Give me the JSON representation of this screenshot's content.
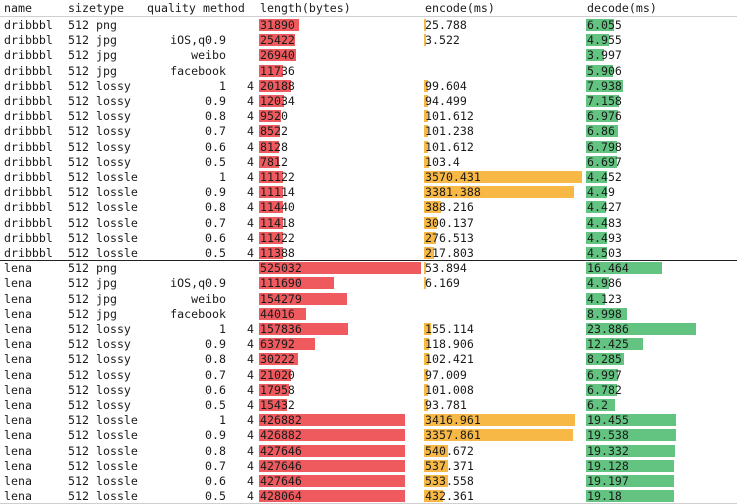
{
  "columns": {
    "name": "name",
    "size": "size",
    "type": "type",
    "quality": "quality",
    "method": "method",
    "length": "length(bytes)",
    "encode": "encode(ms)",
    "decode": "decode(ms)"
  },
  "bar_colors": {
    "length": "#ef5a5f",
    "encode": "#f7b846",
    "decode": "#63c381"
  },
  "bar_max": {
    "length": 525032,
    "encode": 3570.431,
    "decode": 23.886
  },
  "rows": [
    {
      "name": "dribbbl",
      "size": "512",
      "type": "png",
      "quality": "",
      "method": "",
      "length": "31890",
      "encode": "25.788",
      "decode": "6.055"
    },
    {
      "name": "dribbbl",
      "size": "512",
      "type": "jpg",
      "quality": "iOS,q0.9",
      "method": "",
      "length": "25422",
      "encode": "3.522",
      "decode": "4.955"
    },
    {
      "name": "dribbbl",
      "size": "512",
      "type": "jpg",
      "quality": "weibo",
      "method": "",
      "length": "26940",
      "encode": "",
      "decode": "3.997"
    },
    {
      "name": "dribbbl",
      "size": "512",
      "type": "jpg",
      "quality": "facebook",
      "method": "",
      "length": "11736",
      "encode": "",
      "decode": "5.906"
    },
    {
      "name": "dribbbl",
      "size": "512",
      "type": "lossy",
      "quality": "1",
      "method": "4",
      "length": "20188",
      "encode": "99.604",
      "decode": "7.938"
    },
    {
      "name": "dribbbl",
      "size": "512",
      "type": "lossy",
      "quality": "0.9",
      "method": "4",
      "length": "12034",
      "encode": "94.499",
      "decode": "7.158"
    },
    {
      "name": "dribbbl",
      "size": "512",
      "type": "lossy",
      "quality": "0.8",
      "method": "4",
      "length": "9520",
      "encode": "101.612",
      "decode": "6.976"
    },
    {
      "name": "dribbbl",
      "size": "512",
      "type": "lossy",
      "quality": "0.7",
      "method": "4",
      "length": "8522",
      "encode": "101.238",
      "decode": "6.86"
    },
    {
      "name": "dribbbl",
      "size": "512",
      "type": "lossy",
      "quality": "0.6",
      "method": "4",
      "length": "8128",
      "encode": "101.612",
      "decode": "6.798"
    },
    {
      "name": "dribbbl",
      "size": "512",
      "type": "lossy",
      "quality": "0.5",
      "method": "4",
      "length": "7812",
      "encode": "103.4",
      "decode": "6.697"
    },
    {
      "name": "dribbbl",
      "size": "512",
      "type": "lossle",
      "quality": "1",
      "method": "4",
      "length": "11122",
      "encode": "3570.431",
      "decode": "4.452"
    },
    {
      "name": "dribbbl",
      "size": "512",
      "type": "lossle",
      "quality": "0.9",
      "method": "4",
      "length": "11114",
      "encode": "3381.388",
      "decode": "4.49"
    },
    {
      "name": "dribbbl",
      "size": "512",
      "type": "lossle",
      "quality": "0.8",
      "method": "4",
      "length": "11440",
      "encode": "388.216",
      "decode": "4.427"
    },
    {
      "name": "dribbbl",
      "size": "512",
      "type": "lossle",
      "quality": "0.7",
      "method": "4",
      "length": "11418",
      "encode": "300.137",
      "decode": "4.483"
    },
    {
      "name": "dribbbl",
      "size": "512",
      "type": "lossle",
      "quality": "0.6",
      "method": "4",
      "length": "11422",
      "encode": "276.513",
      "decode": "4.493"
    },
    {
      "name": "dribbbl",
      "size": "512",
      "type": "lossle",
      "quality": "0.5",
      "method": "4",
      "length": "11388",
      "encode": "217.803",
      "decode": "4.503"
    },
    {
      "name": "lena",
      "size": "512",
      "type": "png",
      "quality": "",
      "method": "",
      "length": "525032",
      "encode": "53.894",
      "decode": "16.464"
    },
    {
      "name": "lena",
      "size": "512",
      "type": "jpg",
      "quality": "iOS,q0.9",
      "method": "",
      "length": "111690",
      "encode": "6.169",
      "decode": "4.986"
    },
    {
      "name": "lena",
      "size": "512",
      "type": "jpg",
      "quality": "weibo",
      "method": "",
      "length": "154279",
      "encode": "",
      "decode": "4.123"
    },
    {
      "name": "lena",
      "size": "512",
      "type": "jpg",
      "quality": "facebook",
      "method": "",
      "length": "44016",
      "encode": "",
      "decode": "8.998"
    },
    {
      "name": "lena",
      "size": "512",
      "type": "lossy",
      "quality": "1",
      "method": "4",
      "length": "157836",
      "encode": "155.114",
      "decode": "23.886"
    },
    {
      "name": "lena",
      "size": "512",
      "type": "lossy",
      "quality": "0.9",
      "method": "4",
      "length": "63792",
      "encode": "118.906",
      "decode": "12.425"
    },
    {
      "name": "lena",
      "size": "512",
      "type": "lossy",
      "quality": "0.8",
      "method": "4",
      "length": "30222",
      "encode": "102.421",
      "decode": "8.285"
    },
    {
      "name": "lena",
      "size": "512",
      "type": "lossy",
      "quality": "0.7",
      "method": "4",
      "length": "21020",
      "encode": "97.009",
      "decode": "6.997"
    },
    {
      "name": "lena",
      "size": "512",
      "type": "lossy",
      "quality": "0.6",
      "method": "4",
      "length": "17958",
      "encode": "101.008",
      "decode": "6.782"
    },
    {
      "name": "lena",
      "size": "512",
      "type": "lossy",
      "quality": "0.5",
      "method": "4",
      "length": "15432",
      "encode": "93.781",
      "decode": "6.2"
    },
    {
      "name": "lena",
      "size": "512",
      "type": "lossle",
      "quality": "1",
      "method": "4",
      "length": "426882",
      "encode": "3416.961",
      "decode": "19.455"
    },
    {
      "name": "lena",
      "size": "512",
      "type": "lossle",
      "quality": "0.9",
      "method": "4",
      "length": "426882",
      "encode": "3357.861",
      "decode": "19.538"
    },
    {
      "name": "lena",
      "size": "512",
      "type": "lossle",
      "quality": "0.8",
      "method": "4",
      "length": "427646",
      "encode": "540.672",
      "decode": "19.332"
    },
    {
      "name": "lena",
      "size": "512",
      "type": "lossle",
      "quality": "0.7",
      "method": "4",
      "length": "427646",
      "encode": "537.371",
      "decode": "19.128"
    },
    {
      "name": "lena",
      "size": "512",
      "type": "lossle",
      "quality": "0.6",
      "method": "4",
      "length": "427646",
      "encode": "533.558",
      "decode": "19.197"
    },
    {
      "name": "lena",
      "size": "512",
      "type": "lossle",
      "quality": "0.5",
      "method": "4",
      "length": "428064",
      "encode": "432.361",
      "decode": "19.18"
    }
  ]
}
